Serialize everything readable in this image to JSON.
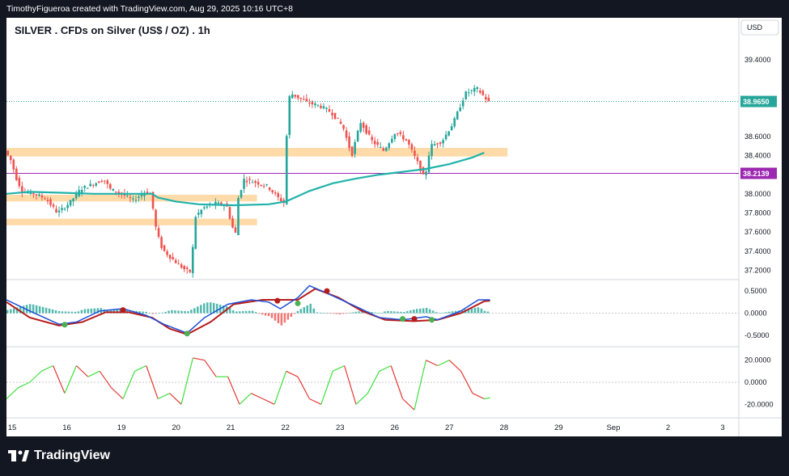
{
  "header": {
    "attribution": "TimothyFigueroa created with TradingView.com, Aug 29, 2025 10:16 UTC+8"
  },
  "chart_title": "SILVER . CFDs on Silver (US$ / OZ) . 1h",
  "currency_label": "USD",
  "footer": {
    "brand": "TradingView",
    "logo_icon": "tradingview-logo-icon"
  },
  "colors": {
    "up": "#26a69a",
    "down": "#ef5350",
    "ma": "#20b2aa",
    "zone": "#ffd59a",
    "hline": "#9c27b0",
    "macd": "#1e4fd8",
    "signal": "#b71c1c",
    "rsi_up": "#3ee03e",
    "rsi_down": "#e53935"
  },
  "chart_data": [
    {
      "type": "candlestick",
      "title": "SILVER . CFDs on Silver (US$ / OZ) . 1h",
      "x_ticks": [
        "15",
        "16",
        "19",
        "20",
        "21",
        "22",
        "23",
        "26",
        "27",
        "28",
        "29",
        "Sep",
        "2",
        "3"
      ],
      "y_ticks": [
        "39.4000",
        "38.6000",
        "38.4000",
        "38.0000",
        "37.8000",
        "37.6000",
        "37.4000",
        "37.2000"
      ],
      "ylim": [
        37.12,
        39.62
      ],
      "price_labels": [
        {
          "text": "38.9650",
          "value": 38.965,
          "color": "#26a69a"
        },
        {
          "text": "38.2139",
          "value": 38.2139,
          "color": "#9c27b0"
        }
      ],
      "resistance_line": 38.2139,
      "moving_average": [
        {
          "t": 0,
          "v": 38.0
        },
        {
          "t": 0.04,
          "v": 38.02
        },
        {
          "t": 0.1,
          "v": 38.01
        },
        {
          "t": 0.15,
          "v": 38.0
        },
        {
          "t": 0.2,
          "v": 38.0
        },
        {
          "t": 0.25,
          "v": 38.0
        },
        {
          "t": 0.26,
          "v": 37.96
        },
        {
          "t": 0.29,
          "v": 37.92
        },
        {
          "t": 0.33,
          "v": 37.89
        },
        {
          "t": 0.39,
          "v": 37.88
        },
        {
          "t": 0.45,
          "v": 37.89
        },
        {
          "t": 0.48,
          "v": 37.92
        },
        {
          "t": 0.52,
          "v": 38.03
        },
        {
          "t": 0.56,
          "v": 38.11
        },
        {
          "t": 0.6,
          "v": 38.16
        },
        {
          "t": 0.64,
          "v": 38.2
        },
        {
          "t": 0.68,
          "v": 38.23
        },
        {
          "t": 0.72,
          "v": 38.26
        },
        {
          "t": 0.76,
          "v": 38.31
        },
        {
          "t": 0.8,
          "v": 38.38
        },
        {
          "t": 0.82,
          "v": 38.43
        }
      ],
      "zones": [
        {
          "low": 38.39,
          "high": 38.48,
          "t0": 0.0,
          "t1": 0.86
        },
        {
          "low": 37.92,
          "high": 37.99,
          "t0": 0.0,
          "t1": 0.43
        },
        {
          "low": 37.67,
          "high": 37.74,
          "t0": 0.0,
          "t1": 0.43
        }
      ],
      "price_path": [
        {
          "t": 0.0,
          "v": 38.45
        },
        {
          "t": 0.01,
          "v": 38.35
        },
        {
          "t": 0.02,
          "v": 38.15
        },
        {
          "t": 0.03,
          "v": 38.02
        },
        {
          "t": 0.05,
          "v": 38.0
        },
        {
          "t": 0.07,
          "v": 37.95
        },
        {
          "t": 0.09,
          "v": 37.8
        },
        {
          "t": 0.11,
          "v": 37.9
        },
        {
          "t": 0.13,
          "v": 38.05
        },
        {
          "t": 0.15,
          "v": 38.1
        },
        {
          "t": 0.17,
          "v": 38.15
        },
        {
          "t": 0.18,
          "v": 38.05
        },
        {
          "t": 0.2,
          "v": 38.0
        },
        {
          "t": 0.22,
          "v": 37.93
        },
        {
          "t": 0.24,
          "v": 38.02
        },
        {
          "t": 0.25,
          "v": 38.0
        },
        {
          "t": 0.26,
          "v": 37.6
        },
        {
          "t": 0.27,
          "v": 37.42
        },
        {
          "t": 0.29,
          "v": 37.3
        },
        {
          "t": 0.31,
          "v": 37.2
        },
        {
          "t": 0.32,
          "v": 37.18
        },
        {
          "t": 0.325,
          "v": 37.75
        },
        {
          "t": 0.34,
          "v": 37.85
        },
        {
          "t": 0.36,
          "v": 37.9
        },
        {
          "t": 0.38,
          "v": 37.88
        },
        {
          "t": 0.395,
          "v": 37.55
        },
        {
          "t": 0.4,
          "v": 37.95
        },
        {
          "t": 0.41,
          "v": 38.15
        },
        {
          "t": 0.43,
          "v": 38.12
        },
        {
          "t": 0.45,
          "v": 38.08
        },
        {
          "t": 0.47,
          "v": 37.95
        },
        {
          "t": 0.48,
          "v": 37.9
        },
        {
          "t": 0.485,
          "v": 38.95
        },
        {
          "t": 0.49,
          "v": 39.05
        },
        {
          "t": 0.52,
          "v": 38.95
        },
        {
          "t": 0.54,
          "v": 38.92
        },
        {
          "t": 0.56,
          "v": 38.85
        },
        {
          "t": 0.58,
          "v": 38.7
        },
        {
          "t": 0.595,
          "v": 38.4
        },
        {
          "t": 0.61,
          "v": 38.75
        },
        {
          "t": 0.63,
          "v": 38.55
        },
        {
          "t": 0.65,
          "v": 38.45
        },
        {
          "t": 0.67,
          "v": 38.65
        },
        {
          "t": 0.69,
          "v": 38.55
        },
        {
          "t": 0.71,
          "v": 38.3
        },
        {
          "t": 0.72,
          "v": 38.15
        },
        {
          "t": 0.73,
          "v": 38.5
        },
        {
          "t": 0.75,
          "v": 38.55
        },
        {
          "t": 0.77,
          "v": 38.75
        },
        {
          "t": 0.79,
          "v": 39.05
        },
        {
          "t": 0.81,
          "v": 39.1
        },
        {
          "t": 0.83,
          "v": 38.96
        }
      ]
    },
    {
      "type": "line",
      "title": "",
      "y_ticks": [
        "0.5000",
        "0.0000",
        "-0.5000"
      ],
      "ylim": [
        -0.72,
        0.72
      ],
      "series": [
        {
          "values": [
            {
              "t": 0.0,
              "v": 0.3
            },
            {
              "t": 0.04,
              "v": 0.05
            },
            {
              "t": 0.09,
              "v": -0.25
            },
            {
              "t": 0.12,
              "v": -0.2
            },
            {
              "t": 0.16,
              "v": 0.05
            },
            {
              "t": 0.2,
              "v": 0.1
            },
            {
              "t": 0.24,
              "v": -0.05
            },
            {
              "t": 0.27,
              "v": -0.25
            },
            {
              "t": 0.31,
              "v": -0.45
            },
            {
              "t": 0.34,
              "v": -0.1
            },
            {
              "t": 0.38,
              "v": 0.2
            },
            {
              "t": 0.42,
              "v": 0.3
            },
            {
              "t": 0.45,
              "v": 0.25
            },
            {
              "t": 0.47,
              "v": 0.1
            },
            {
              "t": 0.5,
              "v": 0.35
            },
            {
              "t": 0.52,
              "v": 0.62
            },
            {
              "t": 0.55,
              "v": 0.45
            },
            {
              "t": 0.6,
              "v": 0.15
            },
            {
              "t": 0.64,
              "v": -0.1
            },
            {
              "t": 0.68,
              "v": -0.15
            },
            {
              "t": 0.72,
              "v": -0.08
            },
            {
              "t": 0.74,
              "v": -0.15
            },
            {
              "t": 0.78,
              "v": 0.05
            },
            {
              "t": 0.81,
              "v": 0.3
            },
            {
              "t": 0.83,
              "v": 0.3
            }
          ]
        },
        {
          "values": [
            {
              "t": 0.0,
              "v": 0.25
            },
            {
              "t": 0.04,
              "v": -0.1
            },
            {
              "t": 0.09,
              "v": -0.28
            },
            {
              "t": 0.13,
              "v": -0.2
            },
            {
              "t": 0.17,
              "v": 0.02
            },
            {
              "t": 0.21,
              "v": 0.02
            },
            {
              "t": 0.25,
              "v": -0.1
            },
            {
              "t": 0.28,
              "v": -0.35
            },
            {
              "t": 0.31,
              "v": -0.48
            },
            {
              "t": 0.35,
              "v": -0.2
            },
            {
              "t": 0.39,
              "v": 0.2
            },
            {
              "t": 0.44,
              "v": 0.3
            },
            {
              "t": 0.47,
              "v": 0.3
            },
            {
              "t": 0.5,
              "v": 0.3
            },
            {
              "t": 0.53,
              "v": 0.55
            },
            {
              "t": 0.57,
              "v": 0.35
            },
            {
              "t": 0.61,
              "v": 0.05
            },
            {
              "t": 0.65,
              "v": -0.15
            },
            {
              "t": 0.7,
              "v": -0.18
            },
            {
              "t": 0.74,
              "v": -0.15
            },
            {
              "t": 0.78,
              "v": 0.0
            },
            {
              "t": 0.82,
              "v": 0.27
            },
            {
              "t": 0.83,
              "v": 0.28
            }
          ]
        }
      ],
      "cross_markers": [
        {
          "t": 0.1,
          "v": -0.26,
          "kind": "bull"
        },
        {
          "t": 0.2,
          "v": 0.07,
          "kind": "bear"
        },
        {
          "t": 0.31,
          "v": -0.46,
          "kind": "bull"
        },
        {
          "t": 0.465,
          "v": 0.28,
          "kind": "bear"
        },
        {
          "t": 0.5,
          "v": 0.22,
          "kind": "bull"
        },
        {
          "t": 0.55,
          "v": 0.5,
          "kind": "bear"
        },
        {
          "t": 0.68,
          "v": -0.13,
          "kind": "bull"
        },
        {
          "t": 0.7,
          "v": -0.13,
          "kind": "bear"
        },
        {
          "t": 0.73,
          "v": -0.15,
          "kind": "bull"
        }
      ]
    },
    {
      "type": "line",
      "title": "",
      "y_ticks": [
        "20.0000",
        "0.0000",
        "-20.0000"
      ],
      "ylim": [
        -30,
        30
      ],
      "series": [
        {
          "values": [
            {
              "t": 0.0,
              "v": -15
            },
            {
              "t": 0.02,
              "v": -5
            },
            {
              "t": 0.04,
              "v": 0
            },
            {
              "t": 0.06,
              "v": 10
            },
            {
              "t": 0.08,
              "v": 15
            },
            {
              "t": 0.1,
              "v": -10
            },
            {
              "t": 0.12,
              "v": 15
            },
            {
              "t": 0.14,
              "v": 5
            },
            {
              "t": 0.16,
              "v": 10
            },
            {
              "t": 0.18,
              "v": -5
            },
            {
              "t": 0.2,
              "v": -15
            },
            {
              "t": 0.22,
              "v": 10
            },
            {
              "t": 0.24,
              "v": 15
            },
            {
              "t": 0.26,
              "v": -15
            },
            {
              "t": 0.28,
              "v": -10
            },
            {
              "t": 0.3,
              "v": -20
            },
            {
              "t": 0.32,
              "v": 22
            },
            {
              "t": 0.34,
              "v": 20
            },
            {
              "t": 0.36,
              "v": 5
            },
            {
              "t": 0.38,
              "v": 5
            },
            {
              "t": 0.4,
              "v": -20
            },
            {
              "t": 0.42,
              "v": -10
            },
            {
              "t": 0.44,
              "v": -15
            },
            {
              "t": 0.46,
              "v": -20
            },
            {
              "t": 0.48,
              "v": 10
            },
            {
              "t": 0.5,
              "v": 5
            },
            {
              "t": 0.52,
              "v": -15
            },
            {
              "t": 0.54,
              "v": -20
            },
            {
              "t": 0.56,
              "v": 10
            },
            {
              "t": 0.58,
              "v": 15
            },
            {
              "t": 0.6,
              "v": -20
            },
            {
              "t": 0.62,
              "v": -10
            },
            {
              "t": 0.64,
              "v": 10
            },
            {
              "t": 0.66,
              "v": 15
            },
            {
              "t": 0.68,
              "v": -15
            },
            {
              "t": 0.7,
              "v": -25
            },
            {
              "t": 0.72,
              "v": 20
            },
            {
              "t": 0.74,
              "v": 15
            },
            {
              "t": 0.76,
              "v": 20
            },
            {
              "t": 0.78,
              "v": 10
            },
            {
              "t": 0.8,
              "v": -10
            },
            {
              "t": 0.82,
              "v": -15
            },
            {
              "t": 0.83,
              "v": -14
            }
          ]
        }
      ]
    }
  ]
}
